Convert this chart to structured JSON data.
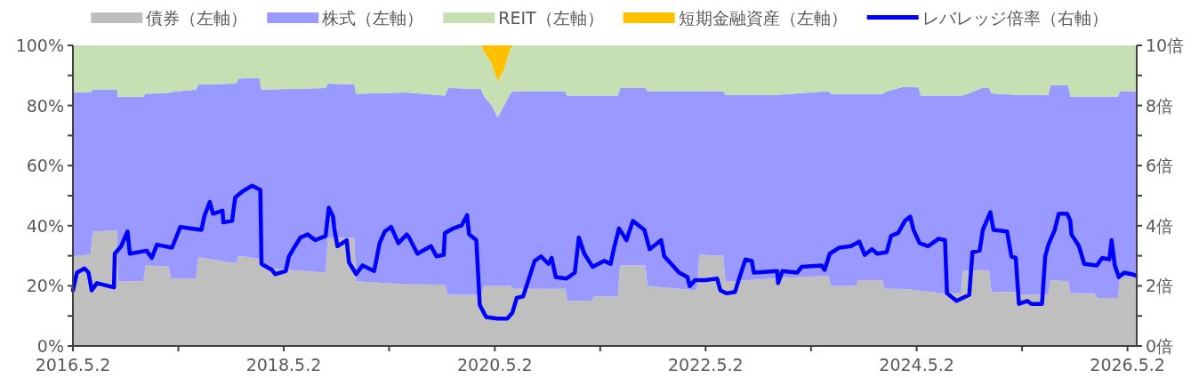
{
  "chart_data": {
    "type": "area",
    "stacked": true,
    "x": [
      "2016-05-02",
      "2016-07-02",
      "2016-07-10",
      "2016-10-02",
      "2016-10-05",
      "2017-01-01",
      "2017-01-08",
      "2017-03-30",
      "2017-04-06",
      "2017-07-02",
      "2017-07-10",
      "2017-11-18",
      "2017-11-26",
      "2018-02-07",
      "2018-02-14",
      "2018-09-24",
      "2018-10-02",
      "2019-01-01",
      "2019-01-08",
      "2019-07-02",
      "2019-11-11",
      "2019-11-22",
      "2020-03-15",
      "2020-03-26",
      "2020-04-21",
      "2020-05-12",
      "2020-06-03",
      "2020-06-25",
      "2020-07-06",
      "2021-01-01",
      "2021-01-08",
      "2021-04-02",
      "2021-04-10",
      "2021-07-02",
      "2021-07-10",
      "2021-10-05",
      "2021-10-13",
      "2022-04-02",
      "2022-04-10",
      "2022-07-02",
      "2022-07-10",
      "2023-01-01",
      "2023-07-02",
      "2023-07-10",
      "2023-10-05",
      "2023-10-13",
      "2024-01-05",
      "2024-01-12",
      "2024-03-15",
      "2024-05-09",
      "2024-05-16",
      "2024-07-06",
      "2024-07-13",
      "2024-10-02",
      "2024-10-09",
      "2024-12-14",
      "2025-01-08",
      "2025-01-16",
      "2025-04-17",
      "2025-04-24",
      "2025-08-01",
      "2025-08-08",
      "2025-10-09",
      "2025-10-16",
      "2026-01-08",
      "2026-01-16",
      "2026-03-30",
      "2026-04-06",
      "2026-05-31"
    ],
    "series": [
      {
        "name": "債券（左軸）",
        "color": "#bfbfbf",
        "values": [
          29.8,
          30.5,
          38,
          38.5,
          21.5,
          21.5,
          26.8,
          26.5,
          22.4,
          22.5,
          29.5,
          27.5,
          30,
          29,
          26,
          24.4,
          36,
          36,
          21.5,
          20.5,
          20.4,
          17,
          17,
          20,
          20,
          20,
          20,
          20,
          19,
          19,
          15,
          15,
          16.5,
          16.5,
          26.8,
          26.8,
          20,
          18.5,
          30.3,
          30,
          21.4,
          22.5,
          23.4,
          20,
          20,
          21.9,
          21.9,
          19,
          19,
          18.5,
          18.3,
          18,
          17.5,
          17.5,
          24.9,
          25.3,
          25,
          18,
          18,
          17,
          17,
          21.9,
          21.5,
          17.5,
          17.5,
          16,
          16,
          22.9,
          22.9
        ]
      },
      {
        "name": "株式（左軸）",
        "color": "#9999ff",
        "values": [
          54.6,
          53.9,
          47.2,
          46.7,
          61.4,
          61.4,
          57.1,
          57.7,
          62.1,
          62.8,
          57.5,
          59.8,
          59,
          60.1,
          59.3,
          61.4,
          51.3,
          51,
          62.4,
          63.8,
          62.9,
          68.8,
          68.5,
          63,
          60,
          56,
          60,
          64,
          65.8,
          65.8,
          68.3,
          68.3,
          66.8,
          66.8,
          59,
          59,
          64.8,
          66.3,
          54.5,
          54.8,
          62.1,
          61,
          61.4,
          63.8,
          63.8,
          61.9,
          61.9,
          65.5,
          67.2,
          67.5,
          65,
          65.3,
          65.8,
          65.8,
          58.4,
          60.5,
          60.8,
          66,
          65.5,
          66.5,
          66.5,
          64.8,
          65.2,
          65.5,
          65.5,
          67,
          67,
          61.9,
          61.9
        ]
      },
      {
        "name": "REIT（左軸）",
        "color": "#c6e0b4",
        "values": [
          15.6,
          15.6,
          14.8,
          14.8,
          17.1,
          17.1,
          16.1,
          15.8,
          15.5,
          14.7,
          13,
          12.7,
          11,
          10.9,
          14.7,
          14.2,
          12.7,
          13,
          16.1,
          15.7,
          16.7,
          14.2,
          14.5,
          15,
          14,
          12,
          12,
          15,
          15.2,
          15.2,
          16.7,
          16.7,
          16.7,
          16.7,
          14.2,
          14.2,
          15.2,
          15.2,
          15.2,
          15.2,
          16.5,
          16.5,
          15.2,
          16.2,
          16.2,
          16.2,
          16.2,
          15.5,
          13.8,
          14,
          16.7,
          16.7,
          16.7,
          16.7,
          16.7,
          14.2,
          14.2,
          16,
          16.5,
          16.5,
          16.5,
          13.3,
          13.3,
          17,
          17,
          17,
          17,
          15.2,
          15.2
        ]
      },
      {
        "name": "短期金融資産（左軸）",
        "color": "#ffc000",
        "values": [
          0,
          0,
          0,
          0,
          0,
          0,
          0,
          0,
          0,
          0,
          0,
          0,
          0,
          0,
          0,
          0,
          0,
          0,
          0,
          0,
          0,
          0,
          0,
          2,
          6,
          12,
          8,
          1,
          0,
          0,
          0,
          0,
          0,
          0,
          0,
          0,
          0,
          0,
          0,
          0,
          0,
          0,
          0,
          0,
          0,
          0,
          0,
          0,
          0,
          0,
          0,
          0,
          0,
          0,
          0,
          0,
          0,
          0,
          0,
          0,
          0,
          0,
          0,
          0,
          0,
          0,
          0,
          0,
          0
        ]
      },
      {
        "name": "レバレッジ倍率（右軸）",
        "type": "line",
        "axis": "y2",
        "color": "#0000ff",
        "x": [
          "2016-05-02",
          "2016-05-16",
          "2016-06-11",
          "2016-06-25",
          "2016-07-06",
          "2016-07-24",
          "2016-09-21",
          "2016-09-24",
          "2016-10-16",
          "2016-11-07",
          "2016-11-15",
          "2017-01-12",
          "2017-01-30",
          "2017-02-17",
          "2017-04-10",
          "2017-05-09",
          "2017-07-21",
          "2017-08-01",
          "2017-08-19",
          "2017-08-30",
          "2017-10-02",
          "2017-10-05",
          "2017-11-04",
          "2017-11-15",
          "2017-12-10",
          "2018-01-12",
          "2018-02-10",
          "2018-02-14",
          "2018-03-22",
          "2018-04-02",
          "2018-05-09",
          "2018-05-20",
          "2018-06-07",
          "2018-06-29",
          "2018-07-24",
          "2018-08-19",
          "2018-09-24",
          "2018-10-05",
          "2018-10-20",
          "2018-10-24",
          "2018-11-04",
          "2018-12-06",
          "2018-12-14",
          "2019-01-08",
          "2019-01-30",
          "2019-03-11",
          "2019-03-30",
          "2019-04-17",
          "2019-05-09",
          "2019-06-03",
          "2019-07-02",
          "2019-07-10",
          "2019-08-08",
          "2019-09-24",
          "2019-10-13",
          "2019-11-07",
          "2019-11-11",
          "2019-12-10",
          "2020-01-08",
          "2020-01-27",
          "2020-02-03",
          "2020-02-28",
          "2020-03-11",
          "2020-04-02",
          "2020-05-12",
          "2020-06-14",
          "2020-07-02",
          "2020-07-17",
          "2020-08-08",
          "2020-08-23",
          "2020-09-17",
          "2020-10-09",
          "2020-11-04",
          "2020-11-15",
          "2020-11-29",
          "2021-01-05",
          "2021-02-03",
          "2021-02-17",
          "2021-03-08",
          "2021-04-06",
          "2021-05-16",
          "2021-06-07",
          "2021-06-18",
          "2021-07-06",
          "2021-08-01",
          "2021-08-23",
          "2021-10-02",
          "2021-10-20",
          "2021-11-29",
          "2021-12-10",
          "2022-01-08",
          "2022-01-30",
          "2022-02-28",
          "2022-03-08",
          "2022-03-26",
          "2022-05-01",
          "2022-06-11",
          "2022-06-22",
          "2022-07-13",
          "2022-08-12",
          "2022-08-26",
          "2022-09-17",
          "2022-10-09",
          "2022-10-16",
          "2023-01-05",
          "2023-01-08",
          "2023-01-23",
          "2023-03-15",
          "2023-03-30",
          "2023-06-07",
          "2023-06-18",
          "2023-07-06",
          "2023-08-08",
          "2023-09-17",
          "2023-10-16",
          "2023-11-04",
          "2023-11-29",
          "2023-12-17",
          "2024-01-19",
          "2024-02-03",
          "2024-02-28",
          "2024-03-22",
          "2024-04-10",
          "2024-04-21",
          "2024-05-12",
          "2024-06-11",
          "2024-07-17",
          "2024-08-08",
          "2024-08-15",
          "2024-09-17",
          "2024-10-31",
          "2024-11-11",
          "2024-12-06",
          "2024-12-17",
          "2025-01-12",
          "2025-01-23",
          "2025-03-11",
          "2025-03-26",
          "2025-04-10",
          "2025-04-21",
          "2025-05-20",
          "2025-06-03",
          "2025-07-10",
          "2025-07-21",
          "2025-08-01",
          "2025-08-23",
          "2025-09-06",
          "2025-10-05",
          "2025-10-16",
          "2025-10-20",
          "2025-11-15",
          "2025-12-03",
          "2026-01-16",
          "2026-02-03",
          "2026-02-28",
          "2026-03-08",
          "2026-03-19",
          "2026-04-02",
          "2026-04-21",
          "2026-05-16",
          "2026-05-31"
        ],
        "values": [
          1.85,
          2.44,
          2.58,
          2.44,
          1.85,
          2.09,
          1.95,
          3.07,
          3.32,
          3.81,
          3.07,
          3.17,
          2.93,
          3.37,
          3.27,
          3.96,
          3.86,
          4.35,
          4.79,
          4.4,
          4.5,
          4.11,
          4.16,
          4.94,
          5.14,
          5.33,
          5.19,
          2.73,
          2.53,
          2.39,
          2.49,
          2.98,
          3.27,
          3.61,
          3.71,
          3.52,
          3.66,
          4.6,
          4.3,
          3.91,
          3.32,
          3.52,
          2.78,
          2.39,
          2.68,
          2.49,
          3.42,
          3.81,
          3.96,
          3.42,
          3.71,
          3.61,
          3.07,
          3.32,
          2.98,
          3.03,
          3.76,
          3.91,
          4.01,
          4.35,
          3.71,
          3.52,
          1.36,
          0.96,
          0.91,
          0.91,
          1.11,
          1.6,
          1.65,
          2.09,
          2.83,
          2.98,
          2.73,
          2.93,
          2.29,
          2.24,
          2.44,
          3.61,
          3.07,
          2.63,
          2.83,
          2.73,
          3.22,
          3.91,
          3.52,
          4.16,
          3.86,
          3.22,
          3.52,
          2.98,
          2.68,
          2.44,
          2.29,
          1.99,
          2.19,
          2.19,
          2.24,
          1.85,
          1.75,
          1.8,
          2.24,
          2.88,
          2.83,
          2.44,
          2.49,
          2.09,
          2.49,
          2.44,
          2.63,
          2.68,
          2.53,
          3.07,
          3.27,
          3.32,
          3.47,
          3.03,
          3.22,
          3.07,
          3.12,
          3.66,
          3.76,
          4.16,
          4.3,
          3.86,
          3.42,
          3.32,
          3.57,
          3.52,
          1.75,
          1.5,
          1.7,
          3.12,
          3.17,
          3.86,
          4.45,
          3.86,
          3.81,
          2.98,
          2.93,
          1.4,
          1.5,
          1.4,
          1.4,
          2.98,
          3.37,
          3.86,
          4.4,
          4.4,
          4.16,
          3.71,
          3.32,
          2.73,
          2.68,
          2.93,
          2.88,
          3.52,
          2.68,
          2.29,
          2.44,
          2.39,
          2.34
        ]
      }
    ],
    "xlim": [
      "2016-05-02",
      "2026-06-03"
    ],
    "xticks": [
      {
        "value": "2016-05-02",
        "label": "2016.5.2"
      },
      {
        "value": "2017-05-02",
        "label": null
      },
      {
        "value": "2018-05-02",
        "label": "2018.5.2"
      },
      {
        "value": "2019-05-02",
        "label": null
      },
      {
        "value": "2020-05-02",
        "label": "2020.5.2"
      },
      {
        "value": "2021-05-02",
        "label": null
      },
      {
        "value": "2022-05-02",
        "label": "2022.5.2"
      },
      {
        "value": "2023-05-02",
        "label": null
      },
      {
        "value": "2024-05-02",
        "label": "2024.5.2"
      },
      {
        "value": "2025-05-02",
        "label": null
      },
      {
        "value": "2026-05-02",
        "label": "2026.5.2"
      }
    ],
    "ylim": [
      0,
      100
    ],
    "yticks": [
      {
        "value": 0,
        "label": "0%"
      },
      {
        "value": 10,
        "label": null
      },
      {
        "value": 20,
        "label": "20%"
      },
      {
        "value": 30,
        "label": null
      },
      {
        "value": 40,
        "label": "40%"
      },
      {
        "value": 50,
        "label": null
      },
      {
        "value": 60,
        "label": "60%"
      },
      {
        "value": 70,
        "label": null
      },
      {
        "value": 80,
        "label": "80%"
      },
      {
        "value": 90,
        "label": null
      },
      {
        "value": 100,
        "label": "100%"
      }
    ],
    "y2lim": [
      0,
      10
    ],
    "y2ticks": [
      {
        "value": 0,
        "label": "0倍"
      },
      {
        "value": 1,
        "label": null
      },
      {
        "value": 2,
        "label": "2倍"
      },
      {
        "value": 3,
        "label": null
      },
      {
        "value": 4,
        "label": "4倍"
      },
      {
        "value": 5,
        "label": null
      },
      {
        "value": 6,
        "label": "6倍"
      },
      {
        "value": 7,
        "label": null
      },
      {
        "value": 8,
        "label": "8倍"
      },
      {
        "value": 9,
        "label": null
      },
      {
        "value": 10,
        "label": "10倍"
      }
    ],
    "legend": "top",
    "grid": false
  }
}
